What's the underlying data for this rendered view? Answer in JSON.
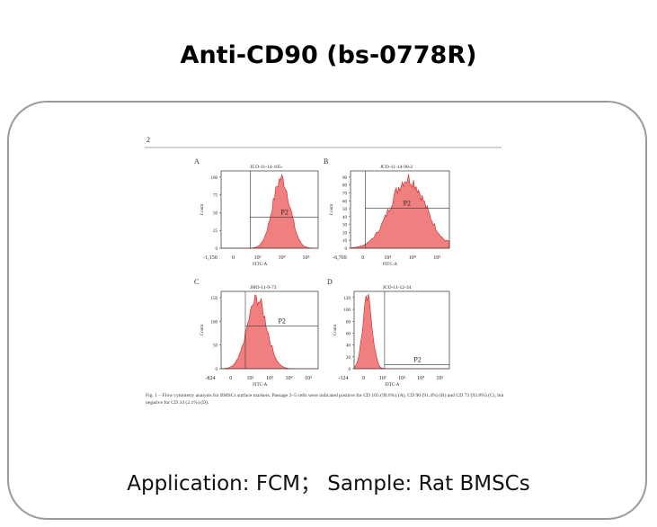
{
  "header": {
    "title": "Anti-CD90 (bs-0778R)"
  },
  "figure": {
    "page_number": "2",
    "panels": [
      {
        "letter": "A",
        "sample": "JCO-11-14-105-",
        "gate": "P2",
        "y_axis_label": "Count",
        "x_axis_label": "FITC-A",
        "yticks": [
          "0",
          "25",
          "50",
          "75",
          "100"
        ],
        "xticks": [
          "-1,150",
          "0",
          "10³",
          "10⁴",
          "10⁵"
        ]
      },
      {
        "letter": "B",
        "sample": "JCO-11-14-90-2",
        "gate": "P2",
        "y_axis_label": "Count",
        "x_axis_label": "FITC-A",
        "yticks": [
          "0",
          "10",
          "20",
          "30",
          "40",
          "50",
          "60",
          "70",
          "80",
          "90"
        ],
        "xticks": [
          "-6,769",
          "0",
          "10³",
          "10⁴",
          "10⁵"
        ]
      },
      {
        "letter": "C",
        "sample": "JHO-11-9-73",
        "gate": "P2",
        "y_axis_label": "Count",
        "x_axis_label": "FITC-A",
        "yticks": [
          "0",
          "50",
          "100",
          "150"
        ],
        "xticks": [
          "-824",
          "0",
          "10²",
          "10³",
          "10⁴",
          "10⁵"
        ]
      },
      {
        "letter": "D",
        "sample": "JCO-11-12-34",
        "gate": "P2",
        "y_axis_label": "Count",
        "x_axis_label": "FITC-A",
        "yticks": [
          "0",
          "20",
          "40",
          "60",
          "80",
          "100",
          "120"
        ],
        "xticks": [
          "-124",
          "0",
          "10²",
          "10³",
          "10⁴",
          "10⁵"
        ]
      }
    ],
    "caption": "Fig. 1 – Flow cytometry analysis for BMSCs surface markers. Passage 3–5 cells were indicated positive for CD 105 (99.6%) (A), CD 90 (91.4%) (B) and CD 73 (93.8%) (C), but negative for CD 34 (2.1%) (D)."
  },
  "footer": {
    "application": "Application: FCM；  Sample: Rat BMSCs"
  }
}
